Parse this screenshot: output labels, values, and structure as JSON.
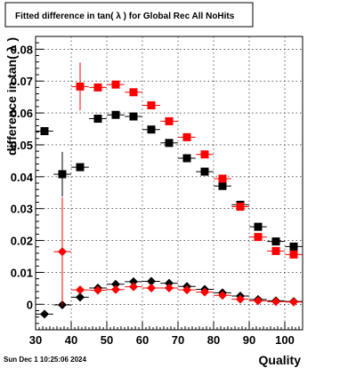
{
  "timestamp": "Sun Dec  1 10:25:06 2024",
  "chart_data": {
    "type": "scatter",
    "title": "Fitted difference in tan( λ ) for Global Rec All NoHits",
    "xlabel": "Quality",
    "ylabel": "difference in tan( λ )",
    "xlim": [
      30,
      105
    ],
    "ylim": [
      -0.008,
      0.084
    ],
    "x_ticks": [
      "30",
      "40",
      "50",
      "60",
      "70",
      "80",
      "90",
      "100"
    ],
    "y_ticks": [
      "0",
      "0.01",
      "0.02",
      "0.03",
      "0.04",
      "0.05",
      "0.06",
      "0.07",
      "0.08"
    ],
    "grid": true,
    "series": [
      {
        "marker": "square",
        "color": "#000000",
        "points": [
          {
            "x": 32.5,
            "y": 0.0543,
            "err": 0.0
          },
          {
            "x": 37.5,
            "y": 0.0408,
            "err": 0.007
          },
          {
            "x": 42.5,
            "y": 0.043,
            "err": 0.0
          },
          {
            "x": 47.5,
            "y": 0.0582,
            "err": 0.0
          },
          {
            "x": 52.5,
            "y": 0.0594,
            "err": 0.0
          },
          {
            "x": 57.5,
            "y": 0.0589,
            "err": 0.0
          },
          {
            "x": 62.5,
            "y": 0.0548,
            "err": 0.0
          },
          {
            "x": 67.5,
            "y": 0.0506,
            "err": 0.0
          },
          {
            "x": 72.5,
            "y": 0.0458,
            "err": 0.0
          },
          {
            "x": 77.5,
            "y": 0.0416,
            "err": 0.0
          },
          {
            "x": 82.5,
            "y": 0.0371,
            "err": 0.0
          },
          {
            "x": 87.5,
            "y": 0.0312,
            "err": 0.0
          },
          {
            "x": 92.5,
            "y": 0.0243,
            "err": 0.0
          },
          {
            "x": 97.5,
            "y": 0.0197,
            "err": 0.0
          },
          {
            "x": 102.5,
            "y": 0.0181,
            "err": 0.0
          }
        ]
      },
      {
        "marker": "square",
        "color": "#ff0000",
        "points": [
          {
            "x": 42.5,
            "y": 0.0683,
            "err": 0.0075
          },
          {
            "x": 47.5,
            "y": 0.068,
            "err": 0.0
          },
          {
            "x": 52.5,
            "y": 0.0689,
            "err": 0.0
          },
          {
            "x": 57.5,
            "y": 0.0665,
            "err": 0.0
          },
          {
            "x": 62.5,
            "y": 0.0624,
            "err": 0.0
          },
          {
            "x": 67.5,
            "y": 0.0574,
            "err": 0.0
          },
          {
            "x": 72.5,
            "y": 0.0524,
            "err": 0.0
          },
          {
            "x": 77.5,
            "y": 0.047,
            "err": 0.0
          },
          {
            "x": 82.5,
            "y": 0.0394,
            "err": 0.0
          },
          {
            "x": 87.5,
            "y": 0.0306,
            "err": 0.0
          },
          {
            "x": 92.5,
            "y": 0.0211,
            "err": 0.0
          },
          {
            "x": 97.5,
            "y": 0.0167,
            "err": 0.0
          },
          {
            "x": 102.5,
            "y": 0.0156,
            "err": 0.0
          }
        ]
      },
      {
        "marker": "diamond",
        "color": "#000000",
        "points": [
          {
            "x": 32.5,
            "y": -0.0031,
            "err": 0.0
          },
          {
            "x": 37.5,
            "y": -0.0002,
            "err": 0.0
          },
          {
            "x": 42.5,
            "y": 0.0022,
            "err": 0.0
          },
          {
            "x": 47.5,
            "y": 0.0051,
            "err": 0.0
          },
          {
            "x": 52.5,
            "y": 0.0063,
            "err": 0.0
          },
          {
            "x": 57.5,
            "y": 0.0071,
            "err": 0.0
          },
          {
            "x": 62.5,
            "y": 0.0072,
            "err": 0.0
          },
          {
            "x": 67.5,
            "y": 0.0066,
            "err": 0.0
          },
          {
            "x": 72.5,
            "y": 0.0056,
            "err": 0.0
          },
          {
            "x": 77.5,
            "y": 0.0047,
            "err": 0.0
          },
          {
            "x": 82.5,
            "y": 0.0036,
            "err": 0.0
          },
          {
            "x": 87.5,
            "y": 0.0026,
            "err": 0.0
          },
          {
            "x": 92.5,
            "y": 0.0015,
            "err": 0.0
          },
          {
            "x": 97.5,
            "y": 0.0011,
            "err": 0.0
          },
          {
            "x": 102.5,
            "y": 0.0009,
            "err": 0.0
          }
        ]
      },
      {
        "marker": "diamond",
        "color": "#ff0000",
        "points": [
          {
            "x": 37.5,
            "y": 0.0165,
            "err": 0.017
          },
          {
            "x": 42.5,
            "y": 0.0045,
            "err": 0.0
          },
          {
            "x": 47.5,
            "y": 0.0044,
            "err": 0.0
          },
          {
            "x": 52.5,
            "y": 0.0046,
            "err": 0.0
          },
          {
            "x": 57.5,
            "y": 0.0055,
            "err": 0.0
          },
          {
            "x": 62.5,
            "y": 0.0051,
            "err": 0.0
          },
          {
            "x": 67.5,
            "y": 0.0051,
            "err": 0.0
          },
          {
            "x": 72.5,
            "y": 0.0045,
            "err": 0.0
          },
          {
            "x": 77.5,
            "y": 0.0038,
            "err": 0.0
          },
          {
            "x": 82.5,
            "y": 0.0028,
            "err": 0.0
          },
          {
            "x": 87.5,
            "y": 0.0016,
            "err": 0.0
          },
          {
            "x": 92.5,
            "y": 0.0011,
            "err": 0.0
          },
          {
            "x": 97.5,
            "y": 0.0008,
            "err": 0.0
          },
          {
            "x": 102.5,
            "y": 0.0007,
            "err": 0.0
          }
        ]
      }
    ]
  }
}
